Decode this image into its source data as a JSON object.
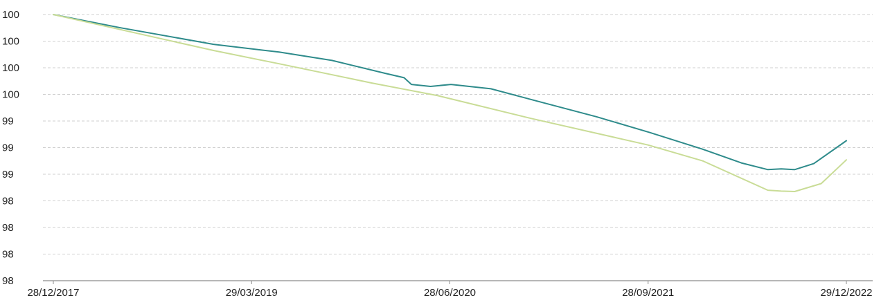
{
  "chart_data": {
    "type": "line",
    "title": "",
    "xlabel": "",
    "ylabel": "",
    "grid": "horizontal dashed",
    "legend": "none",
    "x_tick_labels": [
      "28/12/2017",
      "29/03/2019",
      "28/06/2020",
      "28/09/2021",
      "29/12/2022"
    ],
    "y_tick_labels": [
      "98",
      "98",
      "98",
      "98",
      "99",
      "99",
      "99",
      "100",
      "100",
      "100",
      "100"
    ],
    "x_range": [
      "2017-12-28",
      "2022-12-29"
    ],
    "y_range": [
      98.0,
      100.0
    ],
    "series": [
      {
        "color": "#2e8b8b",
        "points": [
          [
            "2017-12-28",
            100.0
          ],
          [
            "2018-06-01",
            99.9
          ],
          [
            "2019-01-01",
            99.776
          ],
          [
            "2019-06-01",
            99.718
          ],
          [
            "2019-10-01",
            99.655
          ],
          [
            "2020-02-01",
            99.558
          ],
          [
            "2020-03-15",
            99.525
          ],
          [
            "2020-04-01",
            99.475
          ],
          [
            "2020-05-15",
            99.46
          ],
          [
            "2020-07-01",
            99.475
          ],
          [
            "2020-10-01",
            99.442
          ],
          [
            "2021-01-01",
            99.362
          ],
          [
            "2021-06-01",
            99.232
          ],
          [
            "2021-10-01",
            99.115
          ],
          [
            "2022-02-01",
            98.988
          ],
          [
            "2022-05-01",
            98.885
          ],
          [
            "2022-07-01",
            98.835
          ],
          [
            "2022-08-01",
            98.84
          ],
          [
            "2022-09-01",
            98.835
          ],
          [
            "2022-10-15",
            98.88
          ],
          [
            "2022-12-29",
            99.052
          ]
        ]
      },
      {
        "color": "#c9dc96",
        "points": [
          [
            "2017-12-28",
            100.0
          ],
          [
            "2019-01-01",
            99.73
          ],
          [
            "2019-06-01",
            99.63
          ],
          [
            "2020-01-01",
            99.485
          ],
          [
            "2020-06-01",
            99.39
          ],
          [
            "2021-01-01",
            99.22
          ],
          [
            "2021-09-28",
            99.02
          ],
          [
            "2022-02-01",
            98.9
          ],
          [
            "2022-07-01",
            98.68
          ],
          [
            "2022-08-01",
            98.673
          ],
          [
            "2022-09-01",
            98.67
          ],
          [
            "2022-11-01",
            98.73
          ],
          [
            "2022-12-29",
            98.908
          ]
        ]
      }
    ]
  }
}
